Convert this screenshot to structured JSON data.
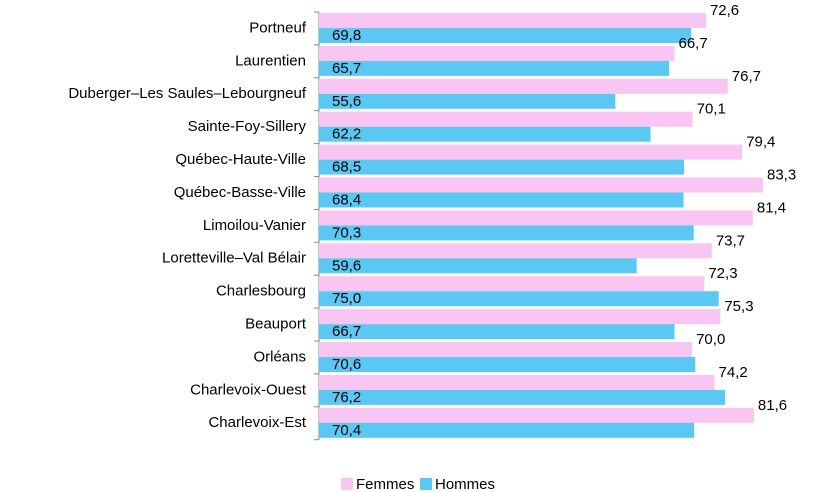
{
  "chart_data": {
    "type": "bar",
    "orientation": "horizontal",
    "categories": [
      "Portneuf",
      "Laurentien",
      "Duberger–Les Saules–Lebourgneuf",
      "Sainte-Foy-Sillery",
      "Québec-Haute-Ville",
      "Québec-Basse-Ville",
      "Limoilou-Vanier",
      "Loretteville–Val Bélair",
      "Charlesbourg",
      "Beauport",
      "Orléans",
      "Charlevoix-Ouest",
      "Charlevoix-Est"
    ],
    "series": [
      {
        "name": "Femmes",
        "color": "#f9c6f3",
        "values": [
          72.6,
          66.7,
          76.7,
          70.1,
          79.4,
          83.3,
          81.4,
          73.7,
          72.3,
          75.3,
          70.0,
          74.2,
          81.6
        ],
        "value_labels": [
          "72,6",
          "66,7",
          "76,7",
          "70,1",
          "79,4",
          "83,3",
          "81,4",
          "73,7",
          "72,3",
          "75,3",
          "70,0",
          "74,2",
          "81,6"
        ]
      },
      {
        "name": "Hommes",
        "color": "#5bc8f4",
        "values": [
          69.8,
          65.7,
          55.6,
          62.2,
          68.5,
          68.4,
          70.3,
          59.6,
          75.0,
          66.7,
          70.6,
          76.2,
          70.4
        ],
        "value_labels": [
          "69,8",
          "65,7",
          "55,6",
          "62,2",
          "68,5",
          "68,4",
          "70,3",
          "59,6",
          "75,0",
          "66,7",
          "70,6",
          "76,2",
          "70,4"
        ]
      }
    ],
    "legend": "bottom"
  }
}
